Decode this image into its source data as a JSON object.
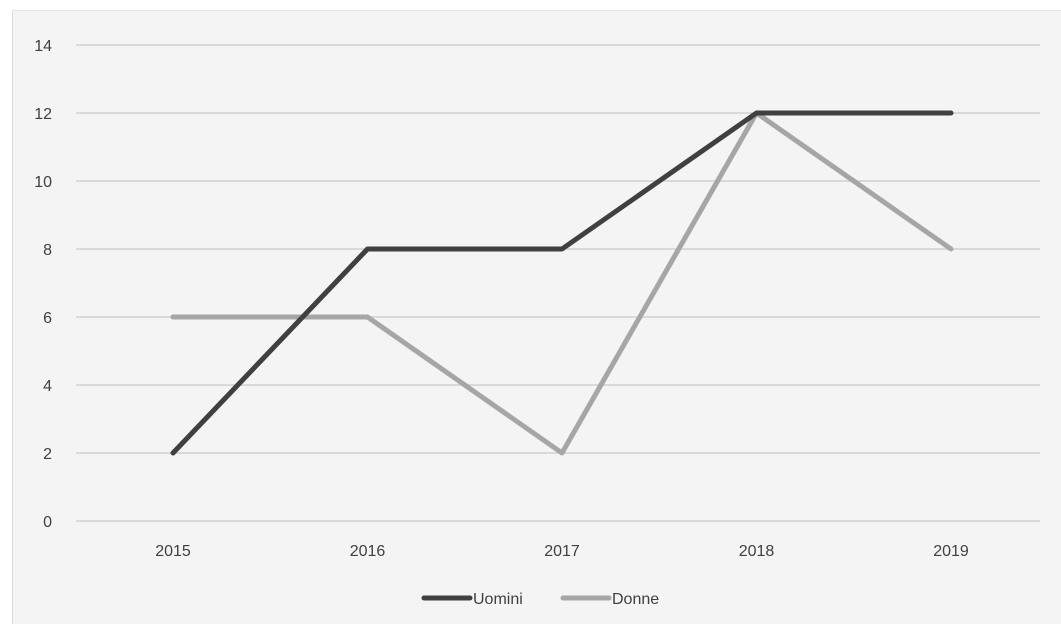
{
  "chart_data": {
    "type": "line",
    "title": "",
    "xlabel": "",
    "ylabel": "",
    "categories": [
      "2015",
      "2016",
      "2017",
      "2018",
      "2019"
    ],
    "series": [
      {
        "name": "Uomini",
        "values": [
          2,
          8,
          8,
          12,
          12
        ],
        "color": "#404040"
      },
      {
        "name": "Donne",
        "values": [
          6,
          6,
          2,
          12,
          8
        ],
        "color": "#a6a6a6"
      }
    ],
    "ylim": [
      0,
      14
    ],
    "yticks": [
      "0",
      "2",
      "4",
      "6",
      "8",
      "10",
      "12",
      "14"
    ],
    "grid": true,
    "legend_position": "bottom",
    "gridline_color": "#d0d0d0"
  }
}
